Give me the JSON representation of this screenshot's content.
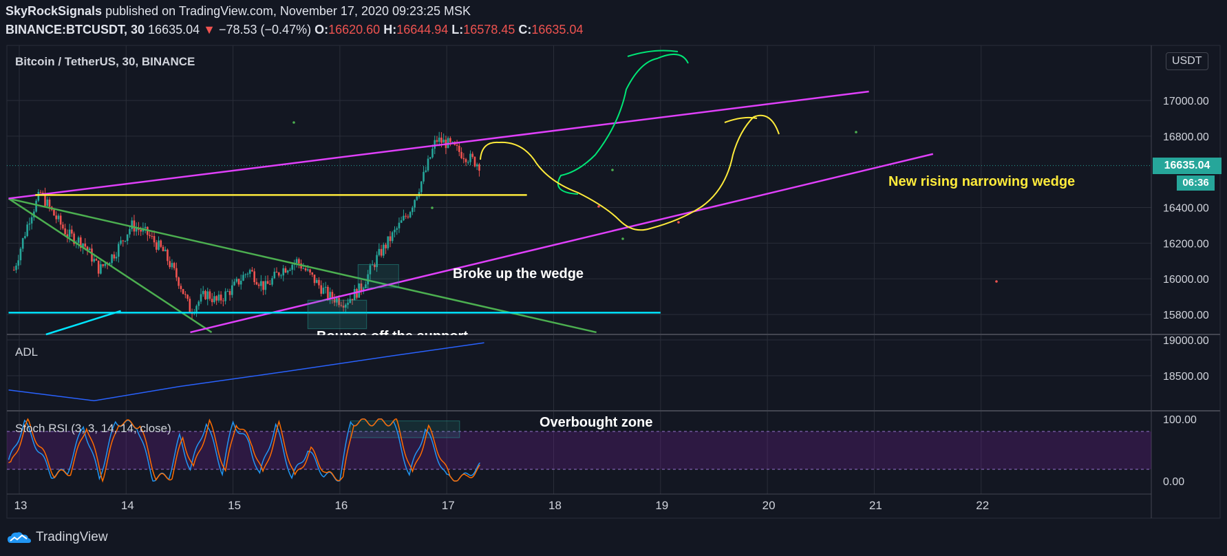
{
  "header": {
    "author": "SkyRockSignals",
    "published": " published on TradingView.com, November 17, 2020 09:23:25 MSK",
    "symbol": "BINANCE:BTCUSDT, 30",
    "last": "16635.04",
    "change": "−78.53 (−0.47%)",
    "o_label": "O:",
    "o_val": "16620.60",
    "h_label": "H:",
    "h_val": "16644.94",
    "l_label": "L:",
    "l_val": "16578.45",
    "c_label": "C:",
    "c_val": "16635.04"
  },
  "panels": {
    "price_title": "Bitcoin / TetherUS, 30, BINANCE",
    "currency": "USDT",
    "adl_title": "ADL",
    "rsi_title": "Stoch RSI (3, 3, 14, 14, close)"
  },
  "price_tag": {
    "value": "16635.04",
    "countdown": "06:36"
  },
  "annotations": {
    "broke": "Broke up the wedge",
    "bounce": "Bounce off the support",
    "wedge": "New rising narrowing wedge",
    "overbought": "Overbought zone"
  },
  "footer": {
    "brand": "TradingView"
  },
  "chart_data": {
    "type": "candlestick",
    "symbol": "BTCUSDT",
    "interval": "30",
    "x_ticks": [
      "13",
      "14",
      "15",
      "16",
      "17",
      "18",
      "19",
      "20",
      "21",
      "22"
    ],
    "price_axis": {
      "ylim": [
        15700,
        17200
      ],
      "ticks": [
        "17000.00",
        "16800.00",
        "16400.00",
        "16200.00",
        "16000.00",
        "15800.00"
      ]
    },
    "adl_axis": {
      "ticks": [
        "19000.00",
        "18500.00"
      ]
    },
    "rsi_axis": {
      "ylim": [
        0,
        100
      ],
      "ticks": [
        "100.00",
        "0.00"
      ]
    },
    "close_path": [
      {
        "day": 12.95,
        "v": 16050
      },
      {
        "day": 13.1,
        "v": 16350
      },
      {
        "day": 13.2,
        "v": 16480
      },
      {
        "day": 13.3,
        "v": 16380
      },
      {
        "day": 13.45,
        "v": 16250
      },
      {
        "day": 13.6,
        "v": 16200
      },
      {
        "day": 13.75,
        "v": 16050
      },
      {
        "day": 13.9,
        "v": 16150
      },
      {
        "day": 14.05,
        "v": 16300
      },
      {
        "day": 14.2,
        "v": 16250
      },
      {
        "day": 14.35,
        "v": 16150
      },
      {
        "day": 14.5,
        "v": 15980
      },
      {
        "day": 14.6,
        "v": 15820
      },
      {
        "day": 14.75,
        "v": 15920
      },
      {
        "day": 14.85,
        "v": 15870
      },
      {
        "day": 15.0,
        "v": 15950
      },
      {
        "day": 15.15,
        "v": 16050
      },
      {
        "day": 15.3,
        "v": 15950
      },
      {
        "day": 15.45,
        "v": 16050
      },
      {
        "day": 15.6,
        "v": 16100
      },
      {
        "day": 15.75,
        "v": 16000
      },
      {
        "day": 15.9,
        "v": 15900
      },
      {
        "day": 16.05,
        "v": 15870
      },
      {
        "day": 16.2,
        "v": 15950
      },
      {
        "day": 16.35,
        "v": 16120
      },
      {
        "day": 16.5,
        "v": 16250
      },
      {
        "day": 16.65,
        "v": 16380
      },
      {
        "day": 16.8,
        "v": 16600
      },
      {
        "day": 16.9,
        "v": 16780
      },
      {
        "day": 17.0,
        "v": 16760
      },
      {
        "day": 17.15,
        "v": 16700
      },
      {
        "day": 17.32,
        "v": 16635
      }
    ],
    "adl_path": [
      {
        "day": 12.9,
        "v": 18300
      },
      {
        "day": 13.7,
        "v": 18150
      },
      {
        "day": 14.5,
        "v": 18350
      },
      {
        "day": 15.5,
        "v": 18560
      },
      {
        "day": 16.5,
        "v": 18780
      },
      {
        "day": 17.35,
        "v": 18960
      }
    ],
    "rsi_path": [
      {
        "day": 12.9,
        "v": 30
      },
      {
        "day": 13.05,
        "v": 95
      },
      {
        "day": 13.15,
        "v": 60
      },
      {
        "day": 13.3,
        "v": 10
      },
      {
        "day": 13.45,
        "v": 15
      },
      {
        "day": 13.6,
        "v": 90
      },
      {
        "day": 13.75,
        "v": 5
      },
      {
        "day": 13.9,
        "v": 95
      },
      {
        "day": 14.1,
        "v": 90
      },
      {
        "day": 14.25,
        "v": 5
      },
      {
        "day": 14.4,
        "v": 8
      },
      {
        "day": 14.5,
        "v": 70
      },
      {
        "day": 14.6,
        "v": 20
      },
      {
        "day": 14.75,
        "v": 95
      },
      {
        "day": 14.9,
        "v": 15
      },
      {
        "day": 15.0,
        "v": 95
      },
      {
        "day": 15.15,
        "v": 60
      },
      {
        "day": 15.25,
        "v": 10
      },
      {
        "day": 15.4,
        "v": 90
      },
      {
        "day": 15.55,
        "v": 5
      },
      {
        "day": 15.7,
        "v": 50
      },
      {
        "day": 15.85,
        "v": 10
      },
      {
        "day": 16.0,
        "v": 5
      },
      {
        "day": 16.1,
        "v": 95
      },
      {
        "day": 16.3,
        "v": 95
      },
      {
        "day": 16.5,
        "v": 95
      },
      {
        "day": 16.65,
        "v": 10
      },
      {
        "day": 16.8,
        "v": 85
      },
      {
        "day": 17.0,
        "v": 5
      },
      {
        "day": 17.15,
        "v": 5
      },
      {
        "day": 17.32,
        "v": 25
      }
    ],
    "drawings": {
      "rising_wedge_upper": {
        "from": {
          "day": 12.9,
          "v": 16450
        },
        "to": {
          "day": 20.95,
          "v": 17050
        }
      },
      "rising_wedge_lower": {
        "from": {
          "day": 14.6,
          "v": 15700
        },
        "to": {
          "day": 21.55,
          "v": 16700
        }
      },
      "resistance": {
        "from": {
          "day": 13.15,
          "v": 16470
        },
        "to": {
          "day": 17.75,
          "v": 16470
        }
      },
      "falling_wedge_upper": {
        "from": {
          "day": 12.9,
          "v": 16450
        },
        "to": {
          "day": 18.4,
          "v": 15700
        }
      },
      "falling_wedge_lower": {
        "from": {
          "day": 12.9,
          "v": 16450
        },
        "to": {
          "day": 14.8,
          "v": 15700
        }
      },
      "support": {
        "from": {
          "day": 12.9,
          "v": 15810
        },
        "to": {
          "day": 19.0,
          "v": 15810
        }
      },
      "last_price_line": 16635.04
    }
  }
}
